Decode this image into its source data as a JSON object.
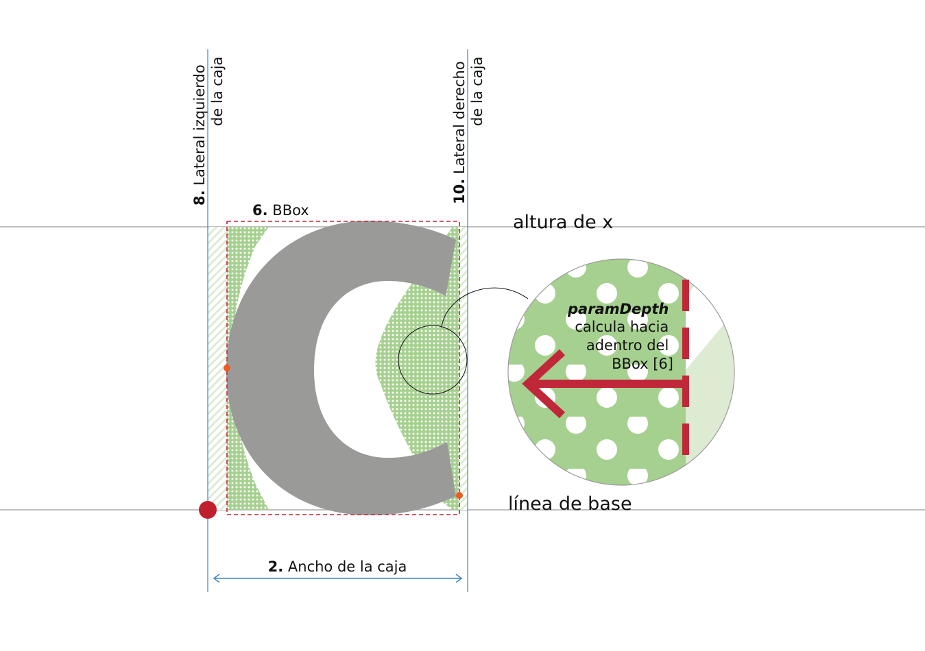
{
  "labels": {
    "left_side_num": "8.",
    "left_side_line1": "Lateral izquierdo",
    "left_side_line2": "de la caja",
    "right_side_num": "10.",
    "right_side_line1": "Lateral derecho",
    "right_side_line2": "de la caja",
    "bbox_num": "6.",
    "bbox_text": "BBox",
    "x_height": "altura de x",
    "baseline": "línea de base",
    "width_num": "2.",
    "width_text": "Ancho de la caja"
  },
  "zoom_callout": {
    "param_name": "paramDepth",
    "line1": "calcula hacia",
    "line2": "adentro del",
    "line3": "BBox [6]"
  },
  "colors": {
    "glyph_gray": "#9a9b99",
    "pattern_green": "#a6d08f",
    "light_green": "#dcebd2",
    "guide_blue": "#3a86c5",
    "bbox_red": "#c0283a",
    "origin_red": "#c0202e",
    "marker_orange": "#f05a22",
    "guide_gray": "#9b9b9b"
  }
}
